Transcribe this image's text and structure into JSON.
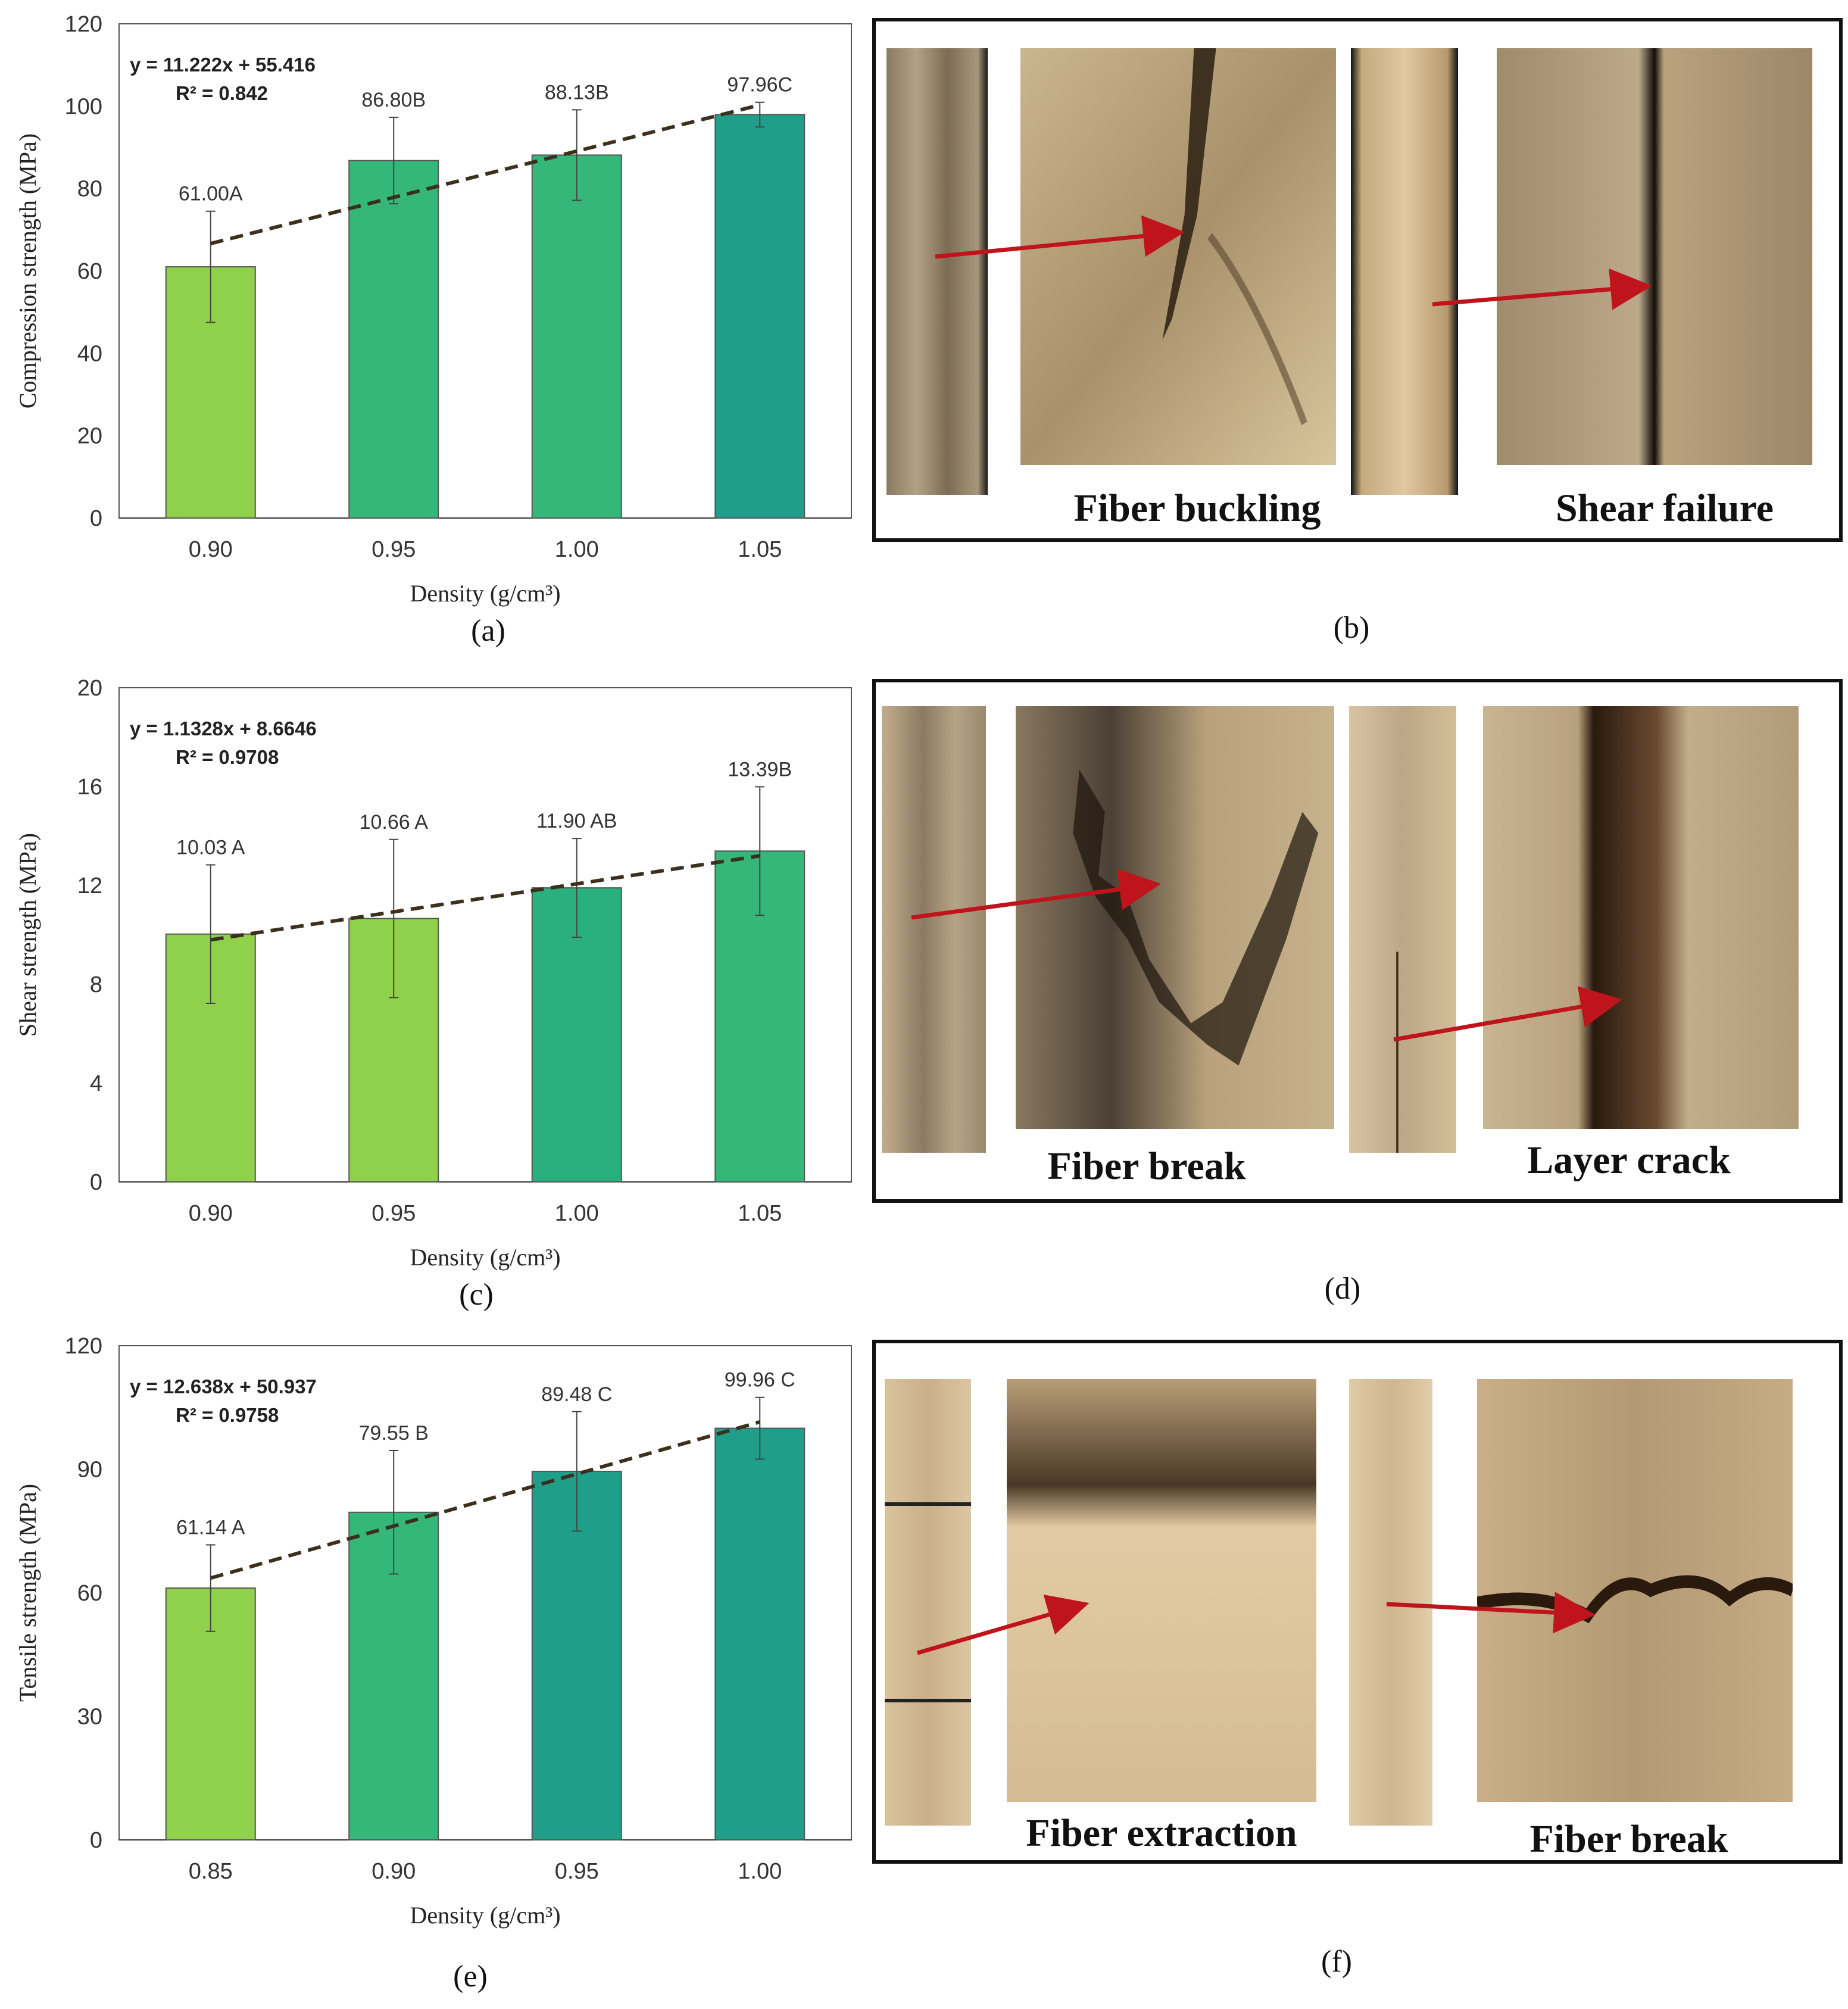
{
  "chart_data": [
    {
      "id": "a",
      "type": "bar",
      "panel_label": "(a)",
      "title": "",
      "xlabel": "Density (g/cm³)",
      "ylabel": "Compression strength (MPa)",
      "ylim": [
        0,
        120
      ],
      "yticks": [
        0,
        20,
        40,
        60,
        80,
        100,
        120
      ],
      "categories": [
        "0.90",
        "0.95",
        "1.00",
        "1.05"
      ],
      "values": [
        61.0,
        86.8,
        88.13,
        97.96
      ],
      "errors": [
        13.5,
        10.5,
        11.0,
        3.0
      ],
      "bar_labels": [
        "61.00A",
        "86.80B",
        "88.13B",
        "97.96C"
      ],
      "bar_colors": [
        "#8fd14a",
        "#35b779",
        "#35b779",
        "#1f9e89"
      ],
      "trendline": {
        "slope": 11.222,
        "intercept": 55.416,
        "equation": "y = 11.222x + 55.416",
        "r2": "R² = 0.842"
      }
    },
    {
      "id": "c",
      "type": "bar",
      "panel_label": "(c)",
      "title": "",
      "xlabel": "Density (g/cm³)",
      "ylabel": "Shear strength (MPa)",
      "ylim": [
        0,
        20
      ],
      "yticks": [
        0,
        4,
        8,
        12,
        16,
        20
      ],
      "categories": [
        "0.90",
        "0.95",
        "1.00",
        "1.05"
      ],
      "values": [
        10.03,
        10.66,
        11.9,
        13.39
      ],
      "errors": [
        2.8,
        3.2,
        2.0,
        2.6
      ],
      "bar_labels": [
        "10.03 A",
        "10.66 A",
        "11.90 AB",
        "13.39B"
      ],
      "bar_colors": [
        "#8fd14a",
        "#8fd14a",
        "#2ab07f",
        "#35b779"
      ],
      "trendline": {
        "slope": 1.1328,
        "intercept": 8.6646,
        "equation": "y = 1.1328x + 8.6646",
        "r2": "R² = 0.9708"
      }
    },
    {
      "id": "e",
      "type": "bar",
      "panel_label": "(e)",
      "title": "",
      "xlabel": "Density (g/cm³)",
      "ylabel": "Tensile strength (MPa)",
      "ylim": [
        0,
        120
      ],
      "yticks": [
        0,
        30,
        60,
        90,
        120
      ],
      "categories": [
        "0.85",
        "0.90",
        "0.95",
        "1.00"
      ],
      "values": [
        61.14,
        79.55,
        89.48,
        99.96
      ],
      "errors": [
        10.5,
        15.0,
        14.5,
        7.5
      ],
      "bar_labels": [
        "61.14 A",
        "79.55 B",
        "89.48 C",
        "99.96 C"
      ],
      "bar_colors": [
        "#8fd14a",
        "#35b779",
        "#1f9e89",
        "#1f9e89"
      ],
      "trendline": {
        "slope": 12.638,
        "intercept": 50.937,
        "equation": "y = 12.638x + 50.937",
        "r2": "R² = 0.9758"
      }
    }
  ],
  "photo_panels": [
    {
      "panel_label": "(b)",
      "captions": [
        "Fiber buckling",
        "Shear failure"
      ]
    },
    {
      "panel_label": "(d)",
      "captions": [
        "Fiber break",
        "Layer crack"
      ]
    },
    {
      "panel_label": "(f)",
      "captions": [
        "Fiber extraction",
        "Fiber break"
      ]
    }
  ],
  "colors": {
    "arrow": "#c0141c",
    "trend": "#3b2f1e",
    "frame": "#111111"
  },
  "icons": [
    "micrograph-image",
    "arrow-icon"
  ]
}
